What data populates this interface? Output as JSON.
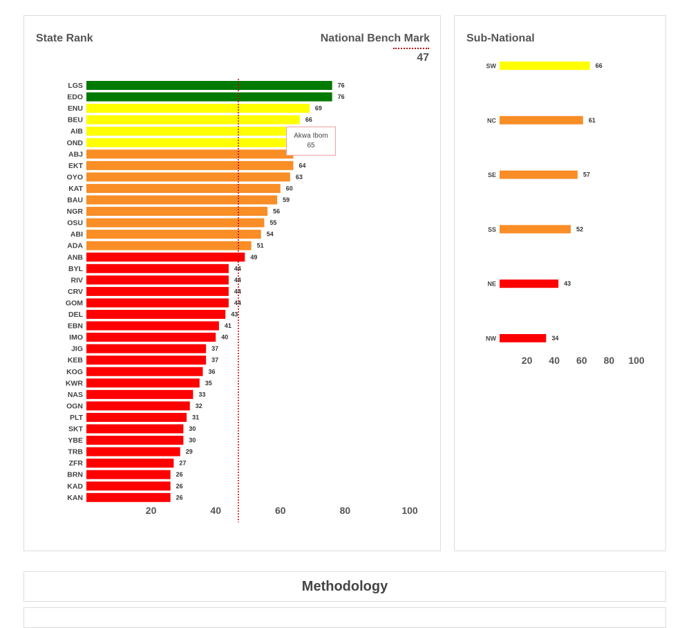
{
  "state_panel": {
    "title": "State Rank",
    "benchmark_label": "National Bench Mark",
    "benchmark_value": "47"
  },
  "sub_panel": {
    "title": "Sub-National"
  },
  "methodology": {
    "title": "Methodology"
  },
  "tooltip": {
    "name": "Akwa Ibom",
    "value": "65"
  },
  "colors": {
    "green": "#007a00",
    "yellow": "#ffff00",
    "orange": "#f98d26",
    "red": "#ff0000",
    "benchmark": "#c00000"
  },
  "chart_data": [
    {
      "type": "bar",
      "orientation": "horizontal",
      "title": "State Rank",
      "xlim": [
        0,
        100
      ],
      "x_ticks": [
        20,
        40,
        60,
        80,
        100
      ],
      "benchmark": 47,
      "categories": [
        "LGS",
        "EDO",
        "ENU",
        "BEU",
        "AIB",
        "OND",
        "ABJ",
        "EKT",
        "OYO",
        "KAT",
        "BAU",
        "NGR",
        "OSU",
        "ABI",
        "ADA",
        "ANB",
        "BYL",
        "RIV",
        "CRV",
        "GOM",
        "DEL",
        "EBN",
        "IMO",
        "JIG",
        "KEB",
        "KOG",
        "KWR",
        "NAS",
        "OGN",
        "PLT",
        "SKT",
        "YBE",
        "TRB",
        "ZFR",
        "BRN",
        "KAD",
        "KAN"
      ],
      "values": [
        76,
        76,
        69,
        66,
        65,
        65,
        64,
        64,
        63,
        60,
        59,
        56,
        55,
        54,
        51,
        49,
        44,
        44,
        44,
        44,
        43,
        41,
        40,
        37,
        37,
        36,
        35,
        33,
        32,
        31,
        30,
        30,
        29,
        27,
        26,
        26,
        26
      ],
      "color_groups": [
        "green",
        "green",
        "yellow",
        "yellow",
        "yellow",
        "yellow",
        "orange",
        "orange",
        "orange",
        "orange",
        "orange",
        "orange",
        "orange",
        "orange",
        "orange",
        "red",
        "red",
        "red",
        "red",
        "red",
        "red",
        "red",
        "red",
        "red",
        "red",
        "red",
        "red",
        "red",
        "red",
        "red",
        "red",
        "red",
        "red",
        "red",
        "red",
        "red",
        "red"
      ],
      "labels": [
        "76",
        "76",
        "69",
        "66",
        "",
        "",
        "",
        "64",
        "63",
        "60",
        "59",
        "56",
        "55",
        "54",
        "51",
        "49",
        "44",
        "44",
        "44",
        "44",
        "43",
        "41",
        "40",
        "37",
        "37",
        "36",
        "35",
        "33",
        "32",
        "31",
        "30",
        "30",
        "29",
        "27",
        "26",
        "26",
        "26"
      ]
    },
    {
      "type": "bar",
      "orientation": "horizontal",
      "title": "Sub-National",
      "xlim": [
        0,
        100
      ],
      "x_ticks": [
        20,
        40,
        60,
        80,
        100
      ],
      "categories": [
        "SW",
        "NC",
        "SE",
        "SS",
        "NE",
        "NW"
      ],
      "values": [
        66,
        61,
        57,
        52,
        43,
        34
      ],
      "color_groups": [
        "yellow",
        "orange",
        "orange",
        "orange",
        "red",
        "red"
      ],
      "labels": [
        "66",
        "61",
        "57",
        "52",
        "43",
        "34"
      ]
    }
  ]
}
